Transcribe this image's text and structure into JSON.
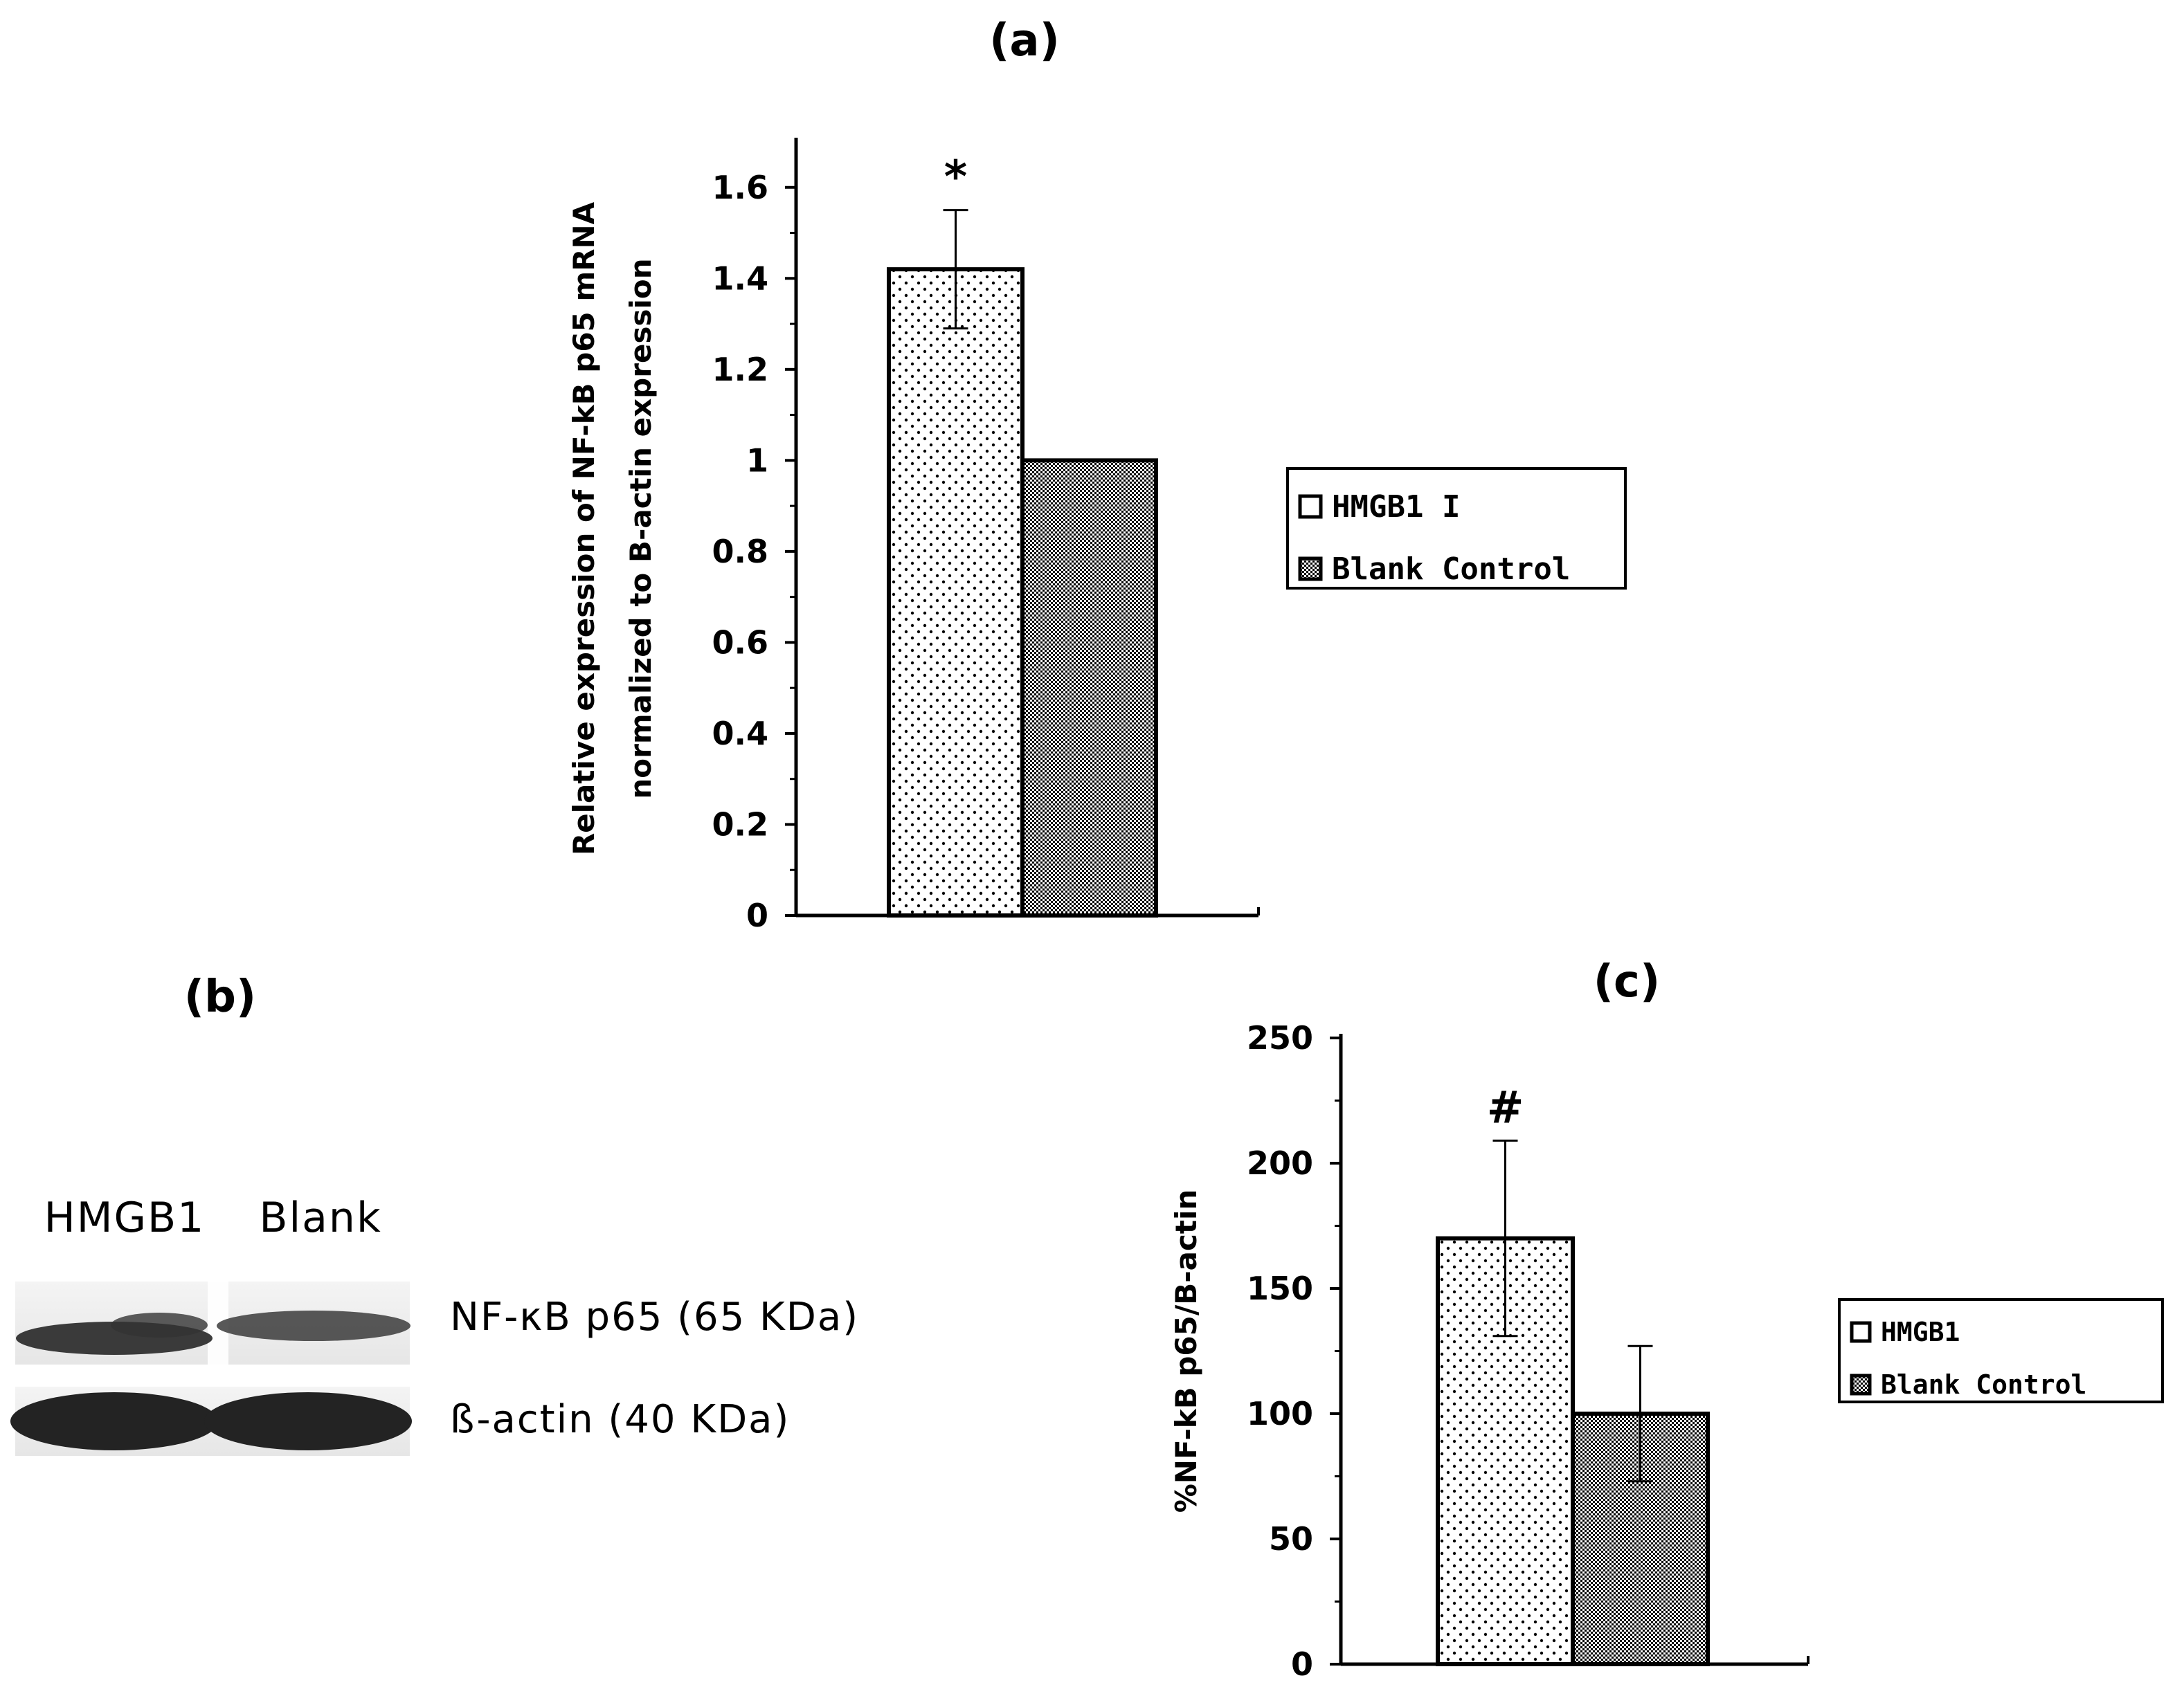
{
  "panels": {
    "a": {
      "label": "(a)"
    },
    "b": {
      "label": "(b)"
    },
    "c": {
      "label": "(c)"
    }
  },
  "blot": {
    "lanes": [
      "HMGB1",
      "Blank"
    ],
    "rows": [
      {
        "label": "NF-κB p65 (65 KDa)"
      },
      {
        "label": "ß-actin (40 KDa)"
      }
    ]
  },
  "chart_data": [
    {
      "type": "bar",
      "panel": "(a)",
      "title": "",
      "xlabel": "",
      "ylabel_lines": [
        "Relative expression of NF-kB p65 mRNA",
        "normalized to B-actin expression"
      ],
      "ylim": [
        0,
        1.7
      ],
      "yticks": [
        0,
        0.2,
        0.4,
        0.6,
        0.8,
        1,
        1.2,
        1.4,
        1.6
      ],
      "ytick_labels": [
        "0",
        "0.2",
        "0.4",
        "0.6",
        "0.8",
        "1",
        "1.2",
        "1.4",
        "1.6"
      ],
      "series": [
        {
          "name": "HMGB1 I",
          "value": 1.42,
          "error": 0.13,
          "annotation": "*",
          "pattern": "dots"
        },
        {
          "name": "Blank Control",
          "value": 1.0,
          "error": null,
          "annotation": "",
          "pattern": "crosshatch"
        }
      ],
      "legend": {
        "entries": [
          "HMGB1 I",
          "Blank Control"
        ],
        "placement": "right"
      },
      "grid": false
    },
    {
      "type": "bar",
      "panel": "(c)",
      "title": "",
      "xlabel": "",
      "ylabel_lines": [
        "%NF-kB p65/B-actin"
      ],
      "ylim": [
        0,
        250
      ],
      "yticks": [
        0,
        50,
        100,
        150,
        200,
        250
      ],
      "ytick_labels": [
        "0",
        "50",
        "100",
        "150",
        "200",
        "250"
      ],
      "series": [
        {
          "name": "HMGB1",
          "value": 170,
          "error": 39,
          "annotation": "#",
          "pattern": "dots"
        },
        {
          "name": "Blank Control",
          "value": 100,
          "error": 27,
          "annotation": "",
          "pattern": "crosshatch"
        }
      ],
      "legend": {
        "entries": [
          "HMGB1",
          "Blank Control"
        ],
        "placement": "right"
      },
      "grid": false
    }
  ]
}
